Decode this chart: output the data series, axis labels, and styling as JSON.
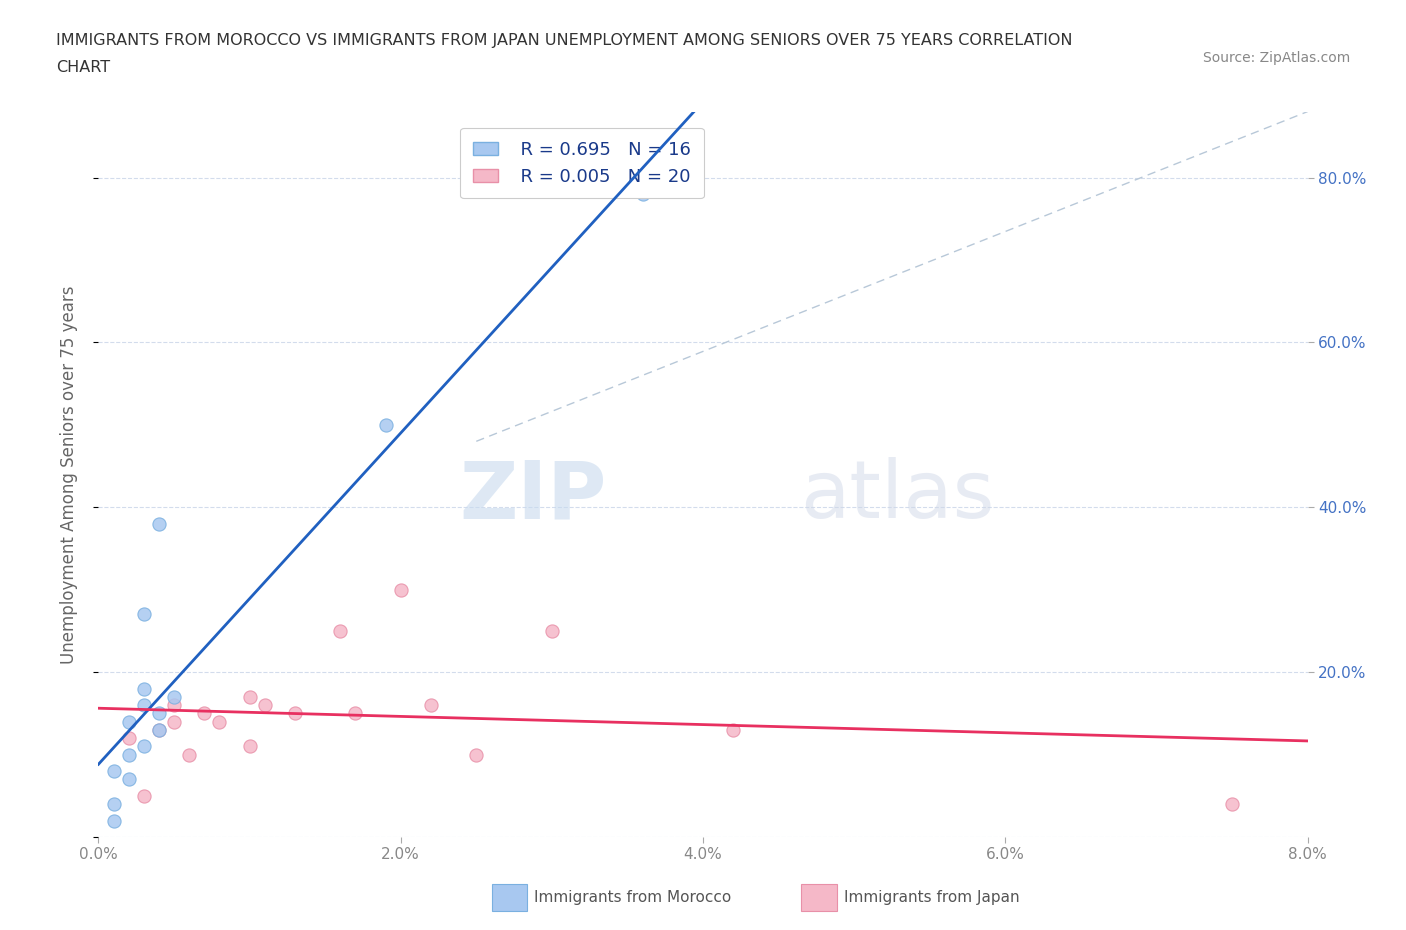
{
  "title_line1": "IMMIGRANTS FROM MOROCCO VS IMMIGRANTS FROM JAPAN UNEMPLOYMENT AMONG SENIORS OVER 75 YEARS CORRELATION",
  "title_line2": "CHART",
  "source": "Source: ZipAtlas.com",
  "ylabel": "Unemployment Among Seniors over 75 years",
  "xlim": [
    0.0,
    0.08
  ],
  "ylim": [
    0.0,
    0.88
  ],
  "xticks": [
    0.0,
    0.02,
    0.04,
    0.06,
    0.08
  ],
  "xticklabels": [
    "0.0%",
    "2.0%",
    "4.0%",
    "6.0%",
    "8.0%"
  ],
  "yticks_left": [
    0.0,
    0.2,
    0.4,
    0.6,
    0.8
  ],
  "yticklabels_left": [
    "",
    "",
    "",
    "",
    ""
  ],
  "yticks_right": [
    0.2,
    0.4,
    0.6,
    0.8
  ],
  "yticklabels_right": [
    "20.0%",
    "40.0%",
    "60.0%",
    "80.0%"
  ],
  "morocco_color": "#a8c8f0",
  "morocco_edge": "#7ab0e0",
  "japan_color": "#f5b8c8",
  "japan_edge": "#e890a8",
  "regression_morocco_color": "#2060c0",
  "regression_japan_color": "#e83060",
  "diagonal_color": "#b8c8d8",
  "watermark_zip": "ZIP",
  "watermark_atlas": "atlas",
  "legend_r_morocco": "R = 0.695",
  "legend_n_morocco": "N = 16",
  "legend_r_japan": "R = 0.005",
  "legend_n_japan": "N = 20",
  "morocco_x": [
    0.001,
    0.001,
    0.001,
    0.002,
    0.002,
    0.002,
    0.003,
    0.003,
    0.003,
    0.003,
    0.004,
    0.004,
    0.004,
    0.005,
    0.019,
    0.036
  ],
  "morocco_y": [
    0.02,
    0.04,
    0.08,
    0.07,
    0.1,
    0.14,
    0.11,
    0.16,
    0.18,
    0.27,
    0.13,
    0.15,
    0.38,
    0.17,
    0.5,
    0.78
  ],
  "japan_x": [
    0.002,
    0.003,
    0.004,
    0.005,
    0.005,
    0.006,
    0.007,
    0.008,
    0.01,
    0.01,
    0.011,
    0.013,
    0.016,
    0.017,
    0.02,
    0.022,
    0.025,
    0.03,
    0.042,
    0.075
  ],
  "japan_y": [
    0.12,
    0.05,
    0.13,
    0.14,
    0.16,
    0.1,
    0.15,
    0.14,
    0.11,
    0.17,
    0.16,
    0.15,
    0.25,
    0.15,
    0.3,
    0.16,
    0.1,
    0.25,
    0.13,
    0.04
  ],
  "background_color": "#ffffff",
  "grid_color": "#c8d4e8",
  "marker_size": 90,
  "right_tick_color": "#4472c4",
  "bottom_tick_color": "#888888"
}
